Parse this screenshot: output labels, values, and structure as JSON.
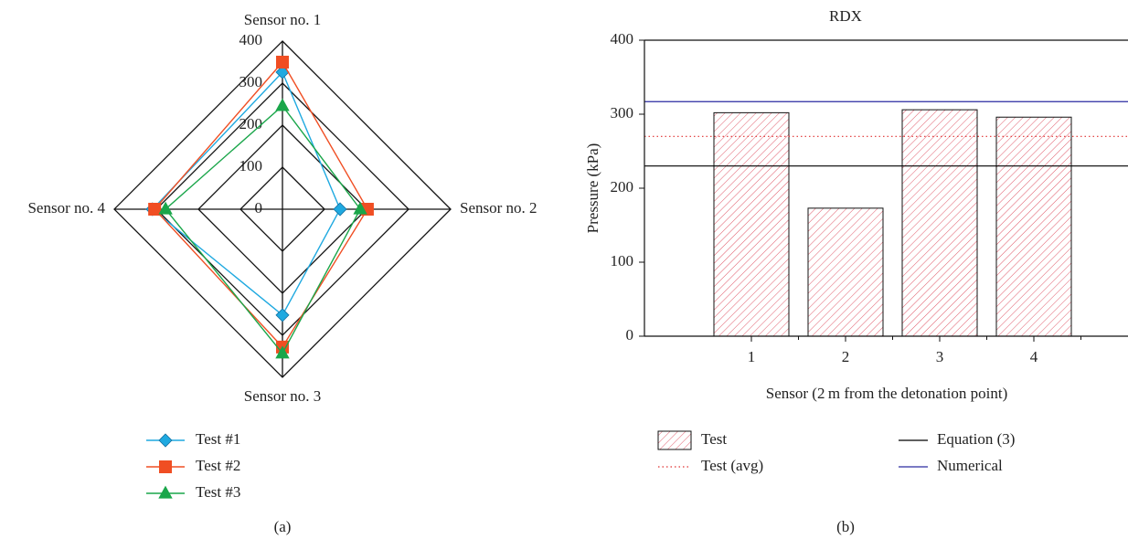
{
  "chart_data": [
    {
      "type": "radar",
      "panel_label": "(a)",
      "axes": [
        "Sensor no. 1",
        "Sensor no. 2",
        "Sensor no. 3",
        "Sensor no. 4"
      ],
      "rlim": [
        0,
        400
      ],
      "rticks": [
        0,
        100,
        200,
        300,
        400
      ],
      "series": [
        {
          "name": "Test #1",
          "color": "#1fa9e0",
          "marker": "diamond",
          "values": [
            326,
            137,
            252,
            309
          ]
        },
        {
          "name": "Test #2",
          "color": "#f04e23",
          "marker": "square",
          "values": [
            350,
            202,
            328,
            304
          ]
        },
        {
          "name": "Test #3",
          "color": "#1aa64a",
          "marker": "triangle",
          "values": [
            246,
            185,
            343,
            278
          ]
        }
      ]
    },
    {
      "type": "bar",
      "panel_label": "(b)",
      "title": "RDX",
      "x_label": "Sensor (2 m from the detonation point)",
      "y_label": "Pressure (kPa)",
      "categories": [
        "1",
        "2",
        "3",
        "4"
      ],
      "ylim": [
        0,
        400
      ],
      "yticks": [
        0,
        100,
        200,
        300,
        400
      ],
      "series": [
        {
          "name": "Test",
          "color": "#e05a6a",
          "fill": "hatch",
          "values": [
            302,
            173,
            306,
            296
          ]
        }
      ],
      "lines": [
        {
          "name": "Test (avg)",
          "color": "#e03030",
          "style": "dotted",
          "value": 270
        },
        {
          "name": "Equation (3)",
          "color": "#000000",
          "style": "solid",
          "value": 230
        },
        {
          "name": "Numerical",
          "color": "#2a2aa0",
          "style": "solid",
          "value": 317
        }
      ]
    }
  ]
}
